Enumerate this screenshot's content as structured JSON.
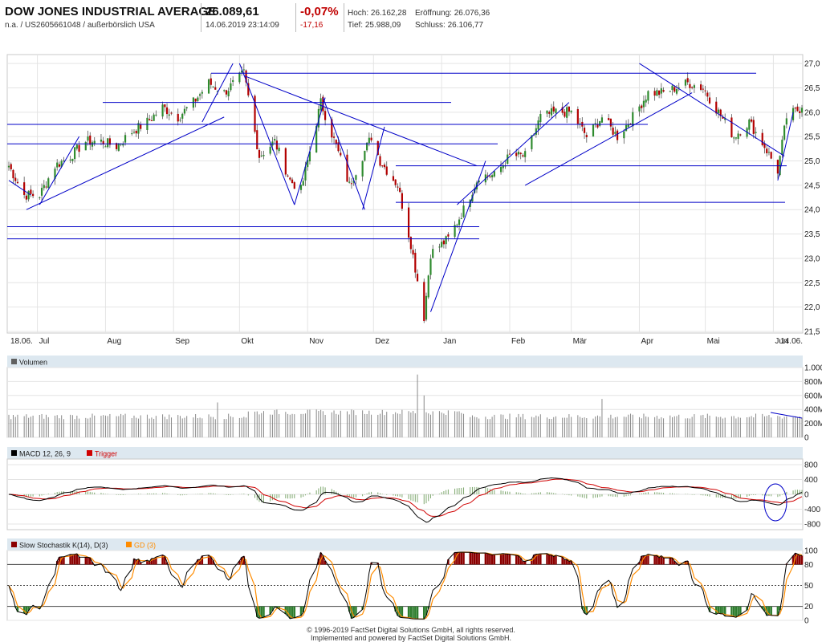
{
  "header": {
    "name": "DOW JONES INDUSTRIAL AVERAGE",
    "sub": "n.a. / US2605661048 / außerbörslich USA",
    "last": "26.089,61",
    "datetime": "14.06.2019 23:14:09",
    "change_pct": "-0,07%",
    "change_abs": "-17,16",
    "high": "Hoch: 26.162,28",
    "low": "Tief: 25.988,09",
    "open": "Eröffnung: 26.076,36",
    "close": "Schluss: 26.106,77"
  },
  "colors": {
    "up": "#2e8b2e",
    "down": "#b20000",
    "trend": "#0000c8",
    "panel_title_bg": "#dde8f0",
    "macd": "#000000",
    "trigger": "#d00000",
    "sd": "#ff8c00"
  },
  "panels": {
    "volume_label": "Volumen",
    "macd_label": "MACD 12, 26, 9",
    "macd_trigger": "Trigger",
    "stoch_label": "Slow Stochastik K(14), D(3)",
    "stoch_sd": "GD (3)"
  },
  "footer": {
    "line1": "© 1996-2019 FactSet Digital Solutions GmbH, all rights reserved.",
    "line2": "Implemented and powered by FactSet Digital Solutions GmbH."
  },
  "chart_data": [
    {
      "type": "candlestick",
      "title": "",
      "x_tick_labels": [
        "18.06.",
        "Jul",
        "Aug",
        "Sep",
        "Okt",
        "Nov",
        "Dez",
        "Jan",
        "Feb",
        "Mär",
        "Apr",
        "Mai",
        "Jun",
        "14.06."
      ],
      "y_ticks": [
        21.5,
        22.0,
        22.5,
        23.0,
        23.5,
        24.0,
        24.5,
        25.0,
        25.5,
        26.0,
        26.5,
        27.0
      ],
      "ylim": [
        21.5,
        27.15
      ],
      "y_unit": "thousand points",
      "grid": true,
      "anchor_closes": [
        [
          "2018-06-18",
          24.9
        ],
        [
          "2018-06-25",
          24.3
        ],
        [
          "2018-07-02",
          24.3
        ],
        [
          "2018-07-09",
          24.9
        ],
        [
          "2018-07-16",
          25.1
        ],
        [
          "2018-07-23",
          25.4
        ],
        [
          "2018-07-30",
          25.4
        ],
        [
          "2018-08-06",
          25.3
        ],
        [
          "2018-08-13",
          25.6
        ],
        [
          "2018-08-20",
          25.8
        ],
        [
          "2018-08-27",
          26.1
        ],
        [
          "2018-09-03",
          25.9
        ],
        [
          "2018-09-10",
          26.2
        ],
        [
          "2018-09-17",
          26.6
        ],
        [
          "2018-09-24",
          26.4
        ],
        [
          "2018-10-03",
          26.8
        ],
        [
          "2018-10-10",
          25.1
        ],
        [
          "2018-10-17",
          25.4
        ],
        [
          "2018-10-24",
          24.6
        ],
        [
          "2018-10-29",
          24.4
        ],
        [
          "2018-11-07",
          26.2
        ],
        [
          "2018-11-14",
          25.3
        ],
        [
          "2018-11-20",
          24.5
        ],
        [
          "2018-11-30",
          25.5
        ],
        [
          "2018-12-04",
          25.0
        ],
        [
          "2018-12-12",
          24.5
        ],
        [
          "2018-12-18",
          23.3
        ],
        [
          "2018-12-24",
          21.8
        ],
        [
          "2018-12-27",
          23.1
        ],
        [
          "2019-01-04",
          23.4
        ],
        [
          "2019-01-11",
          24.0
        ],
        [
          "2019-01-18",
          24.7
        ],
        [
          "2019-01-25",
          24.7
        ],
        [
          "2019-02-01",
          25.1
        ],
        [
          "2019-02-08",
          25.1
        ],
        [
          "2019-02-15",
          25.9
        ],
        [
          "2019-02-22",
          26.0
        ],
        [
          "2019-03-01",
          26.0
        ],
        [
          "2019-03-08",
          25.5
        ],
        [
          "2019-03-15",
          25.9
        ],
        [
          "2019-03-22",
          25.5
        ],
        [
          "2019-03-29",
          25.9
        ],
        [
          "2019-04-05",
          26.4
        ],
        [
          "2019-04-12",
          26.4
        ],
        [
          "2019-04-23",
          26.6
        ],
        [
          "2019-04-30",
          26.5
        ],
        [
          "2019-05-07",
          26.0
        ],
        [
          "2019-05-14",
          25.5
        ],
        [
          "2019-05-21",
          25.8
        ],
        [
          "2019-05-28",
          25.3
        ],
        [
          "2019-06-03",
          24.8
        ],
        [
          "2019-06-07",
          25.9
        ],
        [
          "2019-06-14",
          26.1
        ]
      ],
      "horizontal_levels": [
        26.8,
        26.2,
        25.75,
        25.35,
        24.9,
        24.15,
        23.65,
        23.4
      ],
      "trendlines": [
        [
          [
            "2018-06-18",
            24.6
          ],
          [
            "2018-06-28",
            24.3
          ]
        ],
        [
          [
            "2018-07-02",
            24.1
          ],
          [
            "2018-07-20",
            25.5
          ]
        ],
        [
          [
            "2018-06-26",
            24.0
          ],
          [
            "2018-09-24",
            25.9
          ]
        ],
        [
          [
            "2018-09-14",
            25.8
          ],
          [
            "2018-09-28",
            27.0
          ]
        ],
        [
          [
            "2018-10-01",
            27.0
          ],
          [
            "2018-10-26",
            24.1
          ]
        ],
        [
          [
            "2018-10-03",
            26.75
          ],
          [
            "2019-01-17",
            24.9
          ]
        ],
        [
          [
            "2018-10-26",
            24.1
          ],
          [
            "2018-11-09",
            26.3
          ]
        ],
        [
          [
            "2018-11-08",
            26.3
          ],
          [
            "2018-11-27",
            24.0
          ]
        ],
        [
          [
            "2018-11-26",
            24.0
          ],
          [
            "2018-12-06",
            25.7
          ]
        ],
        [
          [
            "2018-12-27",
            21.9
          ],
          [
            "2019-01-21",
            25.0
          ]
        ],
        [
          [
            "2019-01-08",
            24.1
          ],
          [
            "2019-02-28",
            26.2
          ]
        ],
        [
          [
            "2019-02-08",
            24.5
          ],
          [
            "2019-04-25",
            26.4
          ]
        ],
        [
          [
            "2019-04-01",
            27.0
          ],
          [
            "2019-06-06",
            25.1
          ]
        ],
        [
          [
            "2019-06-03",
            24.6
          ],
          [
            "2019-06-10",
            26.0
          ]
        ]
      ]
    },
    {
      "type": "bar",
      "title": "Volumen",
      "y_tick_labels": [
        "0",
        "200M",
        "400M",
        "600M",
        "800M",
        "1.000"
      ],
      "ylim": [
        0,
        1000
      ],
      "y_unit": "million shares",
      "base_level": 300,
      "spikes": [
        [
          "2018-09-21",
          500
        ],
        [
          "2018-12-21",
          900
        ],
        [
          "2018-12-24",
          600
        ],
        [
          "2019-03-15",
          550
        ]
      ]
    },
    {
      "type": "line",
      "title": "MACD 12, 26, 9",
      "series": [
        {
          "name": "MACD 12, 26, 9"
        },
        {
          "name": "Trigger"
        }
      ],
      "y_ticks": [
        -800,
        -400,
        0,
        400,
        800
      ],
      "ylim": [
        -950,
        950
      ],
      "histogram": "MACD minus Trigger"
    },
    {
      "type": "line",
      "title": "Slow Stochastik K(14), D(3)",
      "series": [
        {
          "name": "Slow Stochastik K(14), D(3)"
        },
        {
          "name": "GD (3)"
        }
      ],
      "y_ticks": [
        0,
        20,
        50,
        80,
        100
      ],
      "ylim": [
        0,
        100
      ],
      "reference_levels": [
        20,
        50,
        80
      ]
    }
  ]
}
